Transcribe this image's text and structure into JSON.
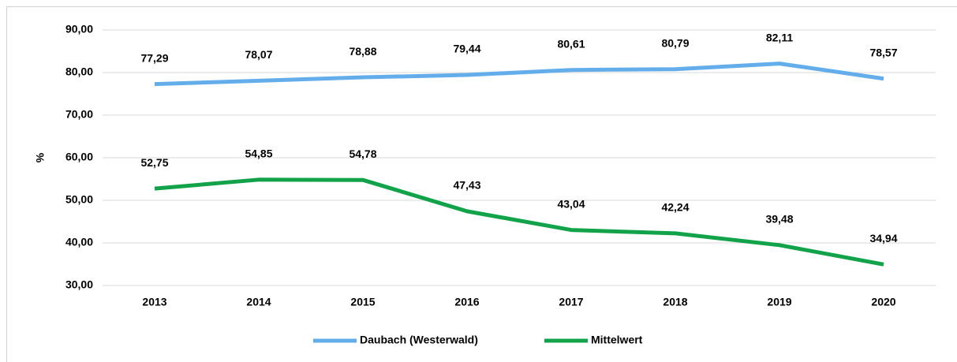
{
  "chart_data": {
    "type": "line",
    "y_label": "%",
    "categories": [
      "2013",
      "2014",
      "2015",
      "2016",
      "2017",
      "2018",
      "2019",
      "2020"
    ],
    "series": [
      {
        "name": "Daubach (Westerwald)",
        "color": "#63aeea",
        "values": [
          77.29,
          78.07,
          78.88,
          79.44,
          80.61,
          80.79,
          82.11,
          78.57
        ],
        "value_labels": [
          "77,29",
          "78,07",
          "78,88",
          "79,44",
          "80,61",
          "80,79",
          "82,11",
          "78,57"
        ]
      },
      {
        "name": "Mittelwert",
        "color": "#12a34a",
        "values": [
          52.75,
          54.85,
          54.78,
          47.43,
          43.04,
          42.24,
          39.48,
          34.94
        ],
        "value_labels": [
          "52,75",
          "54,85",
          "54,78",
          "47,43",
          "43,04",
          "42,24",
          "39,48",
          "34,94"
        ]
      }
    ],
    "ylim": [
      30,
      90
    ],
    "yticks": [
      {
        "value": 30,
        "label": "30,00"
      },
      {
        "value": 40,
        "label": "40,00"
      },
      {
        "value": 50,
        "label": "50,00"
      },
      {
        "value": 60,
        "label": "60,00"
      },
      {
        "value": 70,
        "label": "70,00"
      },
      {
        "value": 80,
        "label": "80,00"
      },
      {
        "value": 90,
        "label": "90,00"
      }
    ],
    "grid": true,
    "legend": "bottom"
  }
}
